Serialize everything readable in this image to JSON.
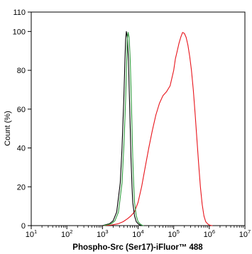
{
  "chart_data": {
    "type": "line",
    "title": "",
    "xlabel": "Phospho-Src (Ser17)-iFluor™ 488",
    "ylabel": "Count  (%)",
    "xscale": "log",
    "xlim": [
      10,
      10000000
    ],
    "ylim": [
      0,
      110
    ],
    "x_ticks": [
      {
        "base": "10",
        "exp": "1"
      },
      {
        "base": "10",
        "exp": "2"
      },
      {
        "base": "10",
        "exp": "3"
      },
      {
        "base": "10",
        "exp": "4"
      },
      {
        "base": "10",
        "exp": "5"
      },
      {
        "base": "10",
        "exp": "6"
      },
      {
        "base": "10",
        "exp": "7"
      }
    ],
    "y_ticks": [
      "0",
      "20",
      "40",
      "60",
      "80",
      "100",
      "110"
    ],
    "grid": false,
    "legend": "none",
    "series": [
      {
        "color": "#e8141b",
        "x": [
          1000,
          1800,
          2800,
          3800,
          5000,
          6300,
          7900,
          10000,
          12600,
          15800,
          20000,
          25100,
          31600,
          39800,
          50100,
          63100,
          79400,
          100000,
          112000,
          126000,
          141000,
          158000,
          178000,
          200000,
          224000,
          251000,
          282000,
          316000,
          355000,
          398000,
          447000,
          501000,
          562000,
          631000,
          708000,
          794000,
          891000,
          1000000,
          1200000
        ],
        "y": [
          0,
          0.3,
          1,
          2,
          3.5,
          5,
          7,
          12,
          20,
          30,
          40,
          49,
          57,
          63,
          67,
          69,
          72,
          80,
          86,
          90,
          94,
          97,
          99.5,
          99,
          97,
          93,
          87,
          80,
          70,
          58,
          45,
          32,
          20,
          11,
          5,
          2,
          1,
          0.3,
          0
        ]
      },
      {
        "color": "#000000",
        "x": [
          1000,
          1580,
          2000,
          2510,
          3160,
          3550,
          3980,
          4270,
          4470,
          4680,
          5010,
          5370,
          5620,
          6030,
          6310,
          6760,
          7080,
          7940,
          8910,
          10000,
          11200,
          12600
        ],
        "y": [
          0,
          1,
          2.5,
          7,
          22,
          40,
          65,
          85,
          96,
          100,
          97,
          85,
          72,
          50,
          35,
          20,
          12,
          5,
          2,
          1,
          0.3,
          0
        ]
      },
      {
        "color": "#2e9a3c",
        "x": [
          1100,
          1780,
          2240,
          2820,
          3550,
          3980,
          4470,
          4790,
          5010,
          5250,
          5620,
          6030,
          6310,
          6760,
          7080,
          7590,
          7940,
          8910,
          10000,
          11200,
          12600,
          14100
        ],
        "y": [
          0,
          1,
          2.5,
          7,
          22,
          40,
          65,
          85,
          96,
          99.5,
          97,
          85,
          72,
          50,
          35,
          20,
          12,
          5,
          2,
          1,
          0.3,
          0
        ]
      }
    ]
  }
}
